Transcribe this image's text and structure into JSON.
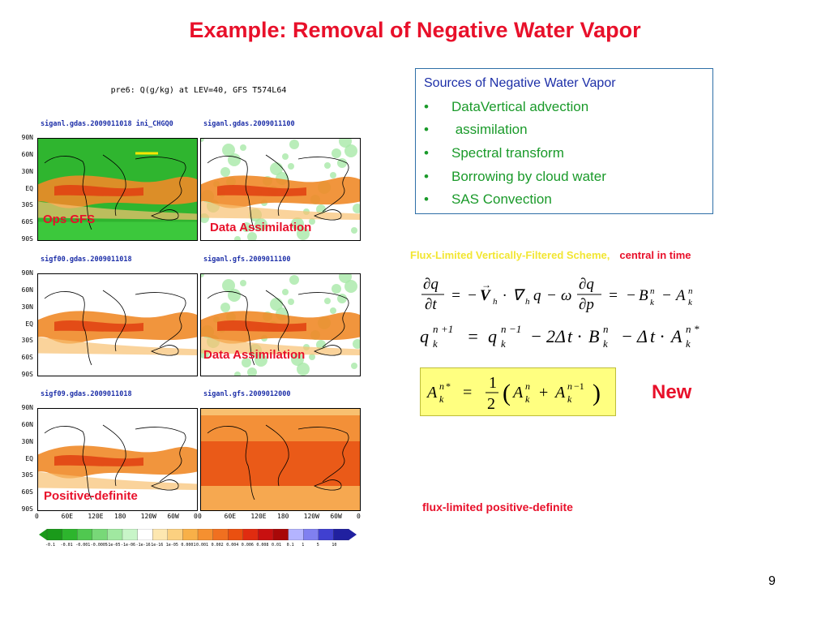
{
  "slide": {
    "title": "Example: Removal of Negative Water Vapor",
    "page_number": "9"
  },
  "figure": {
    "title": "pre6: Q(g/kg) at LEV=40, GFS T574L64",
    "panels": [
      {
        "label": "siganl.gdas.2009011018  ini_CHGQ0",
        "overlay": "Ops GFS"
      },
      {
        "label": "siganl.gdas.2009011100",
        "overlay": "Data Assimilation"
      },
      {
        "label": "sigf00.gdas.2009011018",
        "overlay": ""
      },
      {
        "label": "siganl.gfs.2009011100",
        "overlay": "Data Assimilation"
      },
      {
        "label": "sigf09.gdas.2009011018",
        "overlay": "Positive-definite"
      },
      {
        "label": "siganl.gfs.2009012000",
        "overlay": ""
      }
    ],
    "lat_ticks": [
      "90N",
      "60N",
      "30N",
      "EQ",
      "30S",
      "60S",
      "90S"
    ],
    "lon_ticks": [
      "0",
      "60E",
      "120E",
      "180",
      "120W",
      "60W",
      "0"
    ],
    "colorbar": {
      "colors": [
        "#1a9a1a",
        "#2db52d",
        "#50c850",
        "#78d878",
        "#a0e8a0",
        "#c8f5c8",
        "#ffffff",
        "#fde7b0",
        "#fbd080",
        "#f8b048",
        "#f59030",
        "#f07020",
        "#ea5010",
        "#e02c10",
        "#c81010",
        "#a80808",
        "#b4b4ff",
        "#8080f0",
        "#4040d0",
        "#2020a0"
      ],
      "labels": [
        "-0.1",
        "-0.01",
        "-0.001",
        "-0.0005",
        "-1e-05",
        "-1e-06",
        "-1e-16",
        "1e-16",
        "1e-05",
        "0.0001",
        "0.001",
        "0.002",
        "0.004",
        "0.006",
        "0.008",
        "0.01",
        "0.1",
        "1",
        "5",
        "10"
      ]
    },
    "overlay_color": "#e8102a"
  },
  "sources": {
    "heading": "Sources of Negative Water Vapor",
    "bullets": [
      "DataVertical advection",
      " assimilation",
      "Spectral transform",
      "Borrowing by cloud water",
      "SAS Convection"
    ],
    "bullet_symbol": "•"
  },
  "scheme": {
    "name": "Flux-Limited Vertically-Filtered Scheme,",
    "timing": "central in time"
  },
  "equations": {
    "new_label": "New",
    "highlight_color": "#ffff80"
  },
  "note": "flux-limited positive-definite"
}
